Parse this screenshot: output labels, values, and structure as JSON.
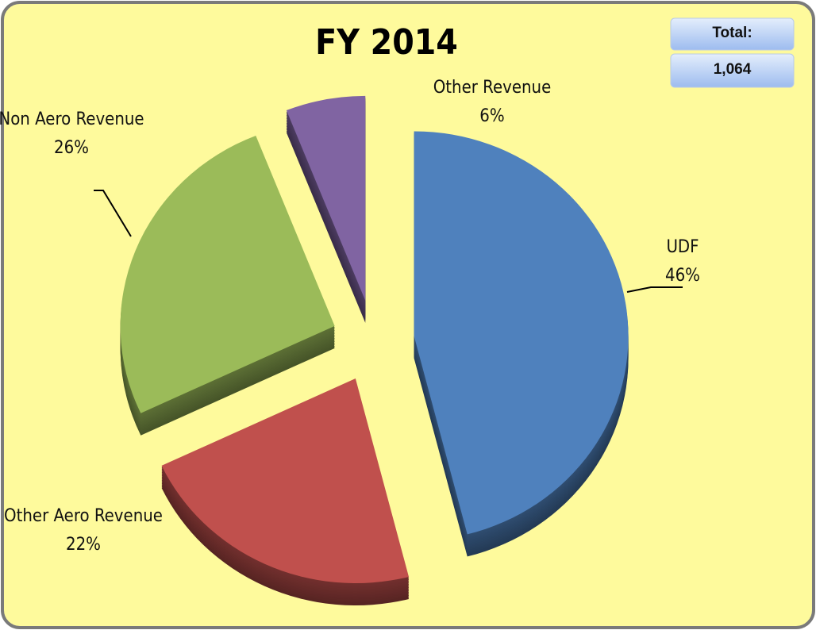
{
  "chart_data": {
    "type": "pie",
    "title": "FY 2014",
    "categories": [
      "UDF",
      "Other Aero Revenue",
      "Non Aero Revenue",
      "Other Revenue"
    ],
    "values": [
      46,
      22,
      26,
      6
    ],
    "value_labels": [
      "46%",
      "22%",
      "26%",
      "6%"
    ],
    "colors": [
      "#4f81bd",
      "#c0504d",
      "#9bbb59",
      "#8064a2"
    ],
    "total": {
      "title": "Total:",
      "value": 1064,
      "label": "1,064"
    }
  }
}
